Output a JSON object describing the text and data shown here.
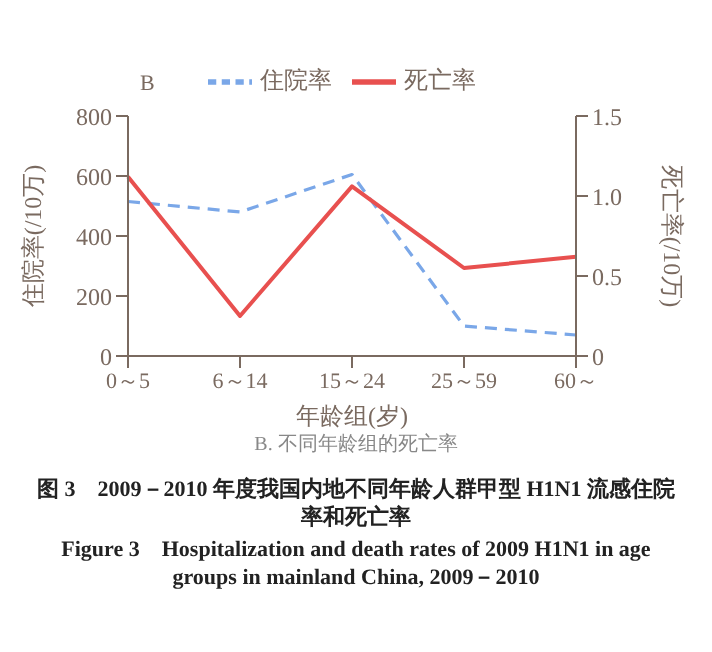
{
  "chart_data": {
    "type": "line",
    "categories": [
      "0～5",
      "6～14",
      "15～24",
      "25～59",
      "60～"
    ],
    "series": [
      {
        "name": "住院率",
        "color": "#7aa7e8",
        "line_style": "dashed",
        "values": [
          515,
          480,
          605,
          100,
          70
        ]
      },
      {
        "name": "死亡率",
        "color": "#e8504f",
        "line_style": "solid",
        "axis": "y2",
        "values": [
          1.12,
          0.25,
          1.06,
          0.55,
          0.62
        ]
      }
    ],
    "xlabel": "年龄组(岁)",
    "ylabel": "住院率(/10万)",
    "y2label": "死亡率(/10万)",
    "ylim": [
      0,
      800
    ],
    "yticks": [
      0,
      200,
      400,
      600,
      800
    ],
    "y2lim": [
      0,
      1.5
    ],
    "y2ticks": [
      0,
      0.5,
      {
        "value": 1,
        "label": "1.0"
      },
      1.5
    ],
    "legend": "top",
    "marker": "none",
    "grid": false,
    "annotations": [
      "B",
      "B. 不同年龄组的死亡率",
      "图 3　2009－2010 年度我国内地不同年龄人群甲型 H1N1 流感住院率和死亡率",
      "Figure 3　Hospitalization and death rates of 2009 H1N1 in age groups in mainland China, 2009－2010"
    ]
  }
}
